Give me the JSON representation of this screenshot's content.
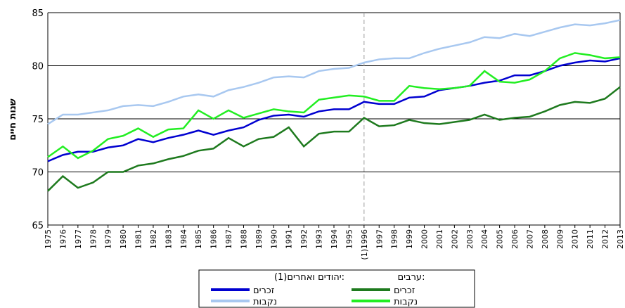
{
  "chart_data": {
    "type": "line",
    "y_label": "שנות חיים",
    "categories": [
      "1975",
      "1976",
      "1977",
      "1978",
      "1979",
      "1980",
      "1981",
      "1982",
      "1983",
      "1984",
      "1985",
      "1986",
      "1987",
      "1988",
      "1989",
      "1990",
      "1991",
      "1992",
      "1993",
      "1994",
      "1995",
      "(1)1996",
      "1997",
      "1998",
      "1999",
      "2000",
      "2001",
      "2002",
      "2003",
      "2004",
      "2005",
      "2006",
      "2007",
      "2008",
      "2009",
      "2010",
      "2011",
      "2012",
      "2013"
    ],
    "legend_groups": [
      "יהודים ואחרים(1):",
      "ערבים:"
    ],
    "series": [
      {
        "name": "זכרים",
        "color": "#0000d0",
        "values": [
          71.0,
          71.6,
          71.9,
          71.9,
          72.3,
          72.5,
          73.1,
          72.8,
          73.2,
          73.5,
          73.9,
          73.5,
          73.9,
          74.2,
          74.9,
          75.3,
          75.4,
          75.2,
          75.7,
          75.9,
          75.9,
          76.6,
          76.4,
          76.4,
          77.0,
          77.1,
          77.7,
          77.9,
          78.1,
          78.4,
          78.6,
          79.1,
          79.1,
          79.5,
          80.0,
          80.3,
          80.5,
          80.4,
          80.7
        ]
      },
      {
        "name": "נקבות",
        "color": "#a8c8f0",
        "values": [
          74.5,
          75.4,
          75.4,
          75.6,
          75.8,
          76.2,
          76.3,
          76.2,
          76.6,
          77.1,
          77.3,
          77.1,
          77.7,
          78.0,
          78.4,
          78.9,
          79.0,
          78.9,
          79.5,
          79.7,
          79.8,
          80.3,
          80.6,
          80.7,
          80.7,
          81.2,
          81.6,
          81.9,
          82.2,
          82.7,
          82.6,
          83.0,
          82.8,
          83.2,
          83.6,
          83.9,
          83.8,
          84.0,
          84.3
        ]
      },
      {
        "name": "זכרים",
        "color": "#1e7a1e",
        "values": [
          68.2,
          69.6,
          68.5,
          69.0,
          70.0,
          70.0,
          70.6,
          70.8,
          71.2,
          71.5,
          72.0,
          72.2,
          73.2,
          72.4,
          73.1,
          73.3,
          74.2,
          72.4,
          73.6,
          73.8,
          73.8,
          75.1,
          74.3,
          74.4,
          74.9,
          74.6,
          74.5,
          74.7,
          74.9,
          75.4,
          74.9,
          75.1,
          75.2,
          75.7,
          76.3,
          76.6,
          76.5,
          76.9,
          78.0
        ]
      },
      {
        "name": "נקבות",
        "color": "#22ee22",
        "values": [
          71.4,
          72.4,
          71.3,
          72.0,
          73.1,
          73.4,
          74.1,
          73.3,
          74.0,
          74.1,
          75.8,
          75.0,
          75.8,
          75.1,
          75.5,
          75.9,
          75.7,
          75.6,
          76.8,
          77.0,
          77.2,
          77.1,
          76.7,
          76.7,
          78.1,
          77.9,
          77.8,
          77.9,
          78.1,
          79.5,
          78.5,
          78.4,
          78.7,
          79.5,
          80.7,
          81.2,
          81.0,
          80.7,
          80.8
        ]
      }
    ],
    "ylim": [
      65,
      85
    ],
    "yticks": [
      65,
      70,
      75,
      80,
      85
    ],
    "grid": true,
    "vline_index": 21
  }
}
